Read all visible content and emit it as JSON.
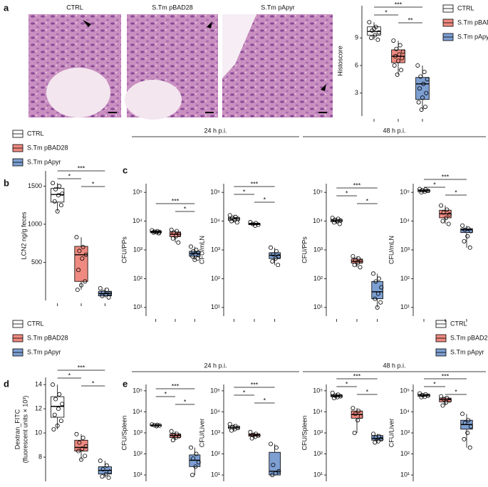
{
  "panels": [
    "a",
    "b",
    "c",
    "d",
    "e"
  ],
  "images": [
    "CTRL",
    "S.Tm pBAD28",
    "S.Tm pApyr"
  ],
  "groups": [
    {
      "name": "CTRL",
      "color": "#ffffff"
    },
    {
      "name": "S.Tm pBAD28",
      "color": "#ef8a80"
    },
    {
      "name": "S.Tm pApyr",
      "color": "#7d9fd2"
    }
  ],
  "timepoints": [
    "24 h p.i.",
    "48 h p.i."
  ],
  "chart_data": [
    {
      "type": "box",
      "ylabel": "Histoscore",
      "log": false,
      "ylim": [
        0.5,
        12.5
      ],
      "yticks": [
        3,
        6,
        9
      ],
      "boxes": [
        {
          "min": 8.8,
          "q1": 9.3,
          "median": 9.7,
          "q3": 10.2,
          "max": 10.7,
          "points": [
            10.7,
            10.2,
            9.8,
            9.6,
            9.3,
            9.0,
            8.8,
            10.0
          ]
        },
        {
          "min": 5.0,
          "q1": 6.3,
          "median": 7.0,
          "q3": 7.7,
          "max": 8.7,
          "points": [
            8.7,
            8.2,
            7.8,
            7.5,
            7.2,
            7.0,
            6.8,
            6.5,
            6.0,
            5.5,
            5.0
          ]
        },
        {
          "min": 1.2,
          "q1": 2.3,
          "median": 4.0,
          "q3": 4.7,
          "max": 6.0,
          "points": [
            6.0,
            5.3,
            4.8,
            4.5,
            4.0,
            3.5,
            3.0,
            2.5,
            2.0,
            1.5,
            1.2
          ]
        }
      ],
      "significance": [
        {
          "label": "***",
          "pair": [
            0,
            2
          ]
        },
        {
          "label": "*",
          "pair": [
            0,
            1
          ]
        },
        {
          "label": "**",
          "pair": [
            1,
            2
          ]
        }
      ]
    },
    {
      "type": "box",
      "ylabel": "LCN2 ng/g feces",
      "log": false,
      "ylim": [
        0,
        1700
      ],
      "yticks": [
        500,
        1000,
        1500
      ],
      "boxes": [
        {
          "min": 1170,
          "q1": 1290,
          "median": 1390,
          "q3": 1470,
          "max": 1540,
          "points": [
            1540,
            1500,
            1460,
            1400,
            1380,
            1300,
            1250,
            1170
          ]
        },
        {
          "min": 140,
          "q1": 250,
          "median": 600,
          "q3": 710,
          "max": 830,
          "points": [
            830,
            700,
            650,
            600,
            550,
            400,
            250,
            200,
            140
          ]
        },
        {
          "min": 40,
          "q1": 60,
          "median": 90,
          "q3": 120,
          "max": 160,
          "points": [
            160,
            140,
            110,
            90,
            80,
            60,
            40
          ]
        }
      ],
      "significance": [
        {
          "label": "***",
          "pair": [
            0,
            2
          ]
        },
        {
          "label": "*",
          "pair": [
            0,
            1
          ]
        },
        {
          "label": "*",
          "pair": [
            1,
            2
          ]
        }
      ]
    },
    {
      "type": "box",
      "ylabel": "CFU/PPs",
      "log": true,
      "ylim": [
        5,
        200000
      ],
      "yticks": [
        {
          "value": 10,
          "label": "10¹"
        },
        {
          "value": 100,
          "label": "10²"
        },
        {
          "value": 1000,
          "label": "10³"
        },
        {
          "value": 10000,
          "label": "10⁴"
        },
        {
          "value": 100000,
          "label": "10⁵"
        }
      ],
      "boxes": [
        {
          "min": 3800,
          "q1": 4000,
          "median": 4200,
          "q3": 4500,
          "max": 4800,
          "points": [
            4800,
            4500,
            4300,
            4200,
            4100,
            4000,
            3800
          ]
        },
        {
          "min": 1800,
          "q1": 2900,
          "median": 3500,
          "q3": 4200,
          "max": 5000,
          "points": [
            5000,
            4500,
            4000,
            3500,
            3000,
            2500,
            1800
          ]
        },
        {
          "min": 450,
          "q1": 600,
          "median": 750,
          "q3": 900,
          "max": 1300,
          "points": [
            1300,
            1000,
            900,
            800,
            700,
            600,
            500,
            450
          ]
        }
      ],
      "significance": [
        {
          "label": "***",
          "pair": [
            0,
            2
          ]
        },
        {
          "label": "*",
          "pair": [
            1,
            2
          ]
        }
      ]
    },
    {
      "type": "box",
      "ylabel": "CFU/mLN",
      "log": true,
      "ylim": [
        5,
        200000
      ],
      "yticks": [
        {
          "value": 10,
          "label": "10¹"
        },
        {
          "value": 100,
          "label": "10²"
        },
        {
          "value": 1000,
          "label": "10³"
        },
        {
          "value": 10000,
          "label": "10⁴"
        },
        {
          "value": 100000,
          "label": "10⁵"
        }
      ],
      "boxes": [
        {
          "min": 9000,
          "q1": 10500,
          "median": 12000,
          "q3": 13500,
          "max": 16000,
          "points": [
            16000,
            14000,
            13000,
            12000,
            11000,
            10000,
            9000
          ]
        },
        {
          "min": 7000,
          "q1": 7500,
          "median": 8000,
          "q3": 8500,
          "max": 9200,
          "points": [
            9200,
            8500,
            8000,
            7500,
            7000
          ]
        },
        {
          "min": 300,
          "q1": 500,
          "median": 650,
          "q3": 800,
          "max": 1200,
          "points": [
            1200,
            900,
            700,
            600,
            500,
            400,
            300
          ]
        }
      ],
      "significance": [
        {
          "label": "***",
          "pair": [
            0,
            2
          ]
        },
        {
          "label": "*",
          "pair": [
            0,
            1
          ]
        },
        {
          "label": "*",
          "pair": [
            1,
            2
          ]
        }
      ]
    },
    {
      "type": "box",
      "ylabel": "CFU/PPs",
      "log": true,
      "ylim": [
        5,
        200000
      ],
      "yticks": [
        {
          "value": 10,
          "label": "10¹"
        },
        {
          "value": 100,
          "label": "10²"
        },
        {
          "value": 1000,
          "label": "10³"
        },
        {
          "value": 10000,
          "label": "10⁴"
        },
        {
          "value": 100000,
          "label": "10⁵"
        }
      ],
      "boxes": [
        {
          "min": 8000,
          "q1": 9500,
          "median": 10500,
          "q3": 11500,
          "max": 13000,
          "points": [
            13000,
            12000,
            11000,
            10500,
            10000,
            9000,
            8000
          ]
        },
        {
          "min": 250,
          "q1": 350,
          "median": 400,
          "q3": 480,
          "max": 600,
          "points": [
            600,
            500,
            450,
            400,
            350,
            300,
            250
          ]
        },
        {
          "min": 10,
          "q1": 20,
          "median": 35,
          "q3": 80,
          "max": 150,
          "points": [
            150,
            100,
            80,
            50,
            30,
            20,
            15,
            10
          ]
        }
      ],
      "significance": [
        {
          "label": "***",
          "pair": [
            0,
            2
          ]
        },
        {
          "label": "*",
          "pair": [
            0,
            1
          ]
        },
        {
          "label": "*",
          "pair": [
            1,
            2
          ]
        }
      ]
    },
    {
      "type": "box",
      "ylabel": "CFU/mLN",
      "log": true,
      "ylim": [
        5,
        200000
      ],
      "yticks": [
        {
          "value": 10,
          "label": "10¹"
        },
        {
          "value": 100,
          "label": "10²"
        },
        {
          "value": 1000,
          "label": "10³"
        },
        {
          "value": 10000,
          "label": "10⁴"
        },
        {
          "value": 100000,
          "label": "10⁵"
        }
      ],
      "boxes": [
        {
          "min": 100000,
          "q1": 105000,
          "median": 115000,
          "q3": 125000,
          "max": 130000,
          "points": [
            130000,
            125000,
            118000,
            112000,
            105000,
            100000
          ]
        },
        {
          "min": 8000,
          "q1": 13000,
          "median": 18000,
          "q3": 24000,
          "max": 35000,
          "points": [
            35000,
            25000,
            20000,
            17000,
            13000,
            10000,
            8000
          ]
        },
        {
          "min": 1200,
          "q1": 4000,
          "median": 5000,
          "q3": 5500,
          "max": 7000,
          "points": [
            7000,
            5500,
            5000,
            4500,
            3000,
            2000,
            1200
          ]
        }
      ],
      "significance": [
        {
          "label": "***",
          "pair": [
            0,
            2
          ]
        },
        {
          "label": "*",
          "pair": [
            0,
            1
          ]
        },
        {
          "label": "*",
          "pair": [
            1,
            2
          ]
        }
      ]
    },
    {
      "type": "box",
      "ylabel": [
        "Dextran_FITC",
        "(fluorescent units × 10³)"
      ],
      "log": false,
      "ylim": [
        6,
        14.6
      ],
      "yticks": [
        8,
        10,
        12,
        14
      ],
      "boxes": [
        {
          "min": 10.3,
          "q1": 11.3,
          "median": 12.2,
          "q3": 13,
          "max": 14,
          "points": [
            14,
            13.2,
            12.8,
            12.4,
            12,
            11.5,
            11,
            10.6,
            10.3
          ]
        },
        {
          "min": 7.8,
          "q1": 8.5,
          "median": 8.8,
          "q3": 9.4,
          "max": 9.9,
          "points": [
            9.9,
            9.6,
            9.2,
            8.9,
            8.7,
            8.5,
            8.1,
            7.8
          ]
        },
        {
          "min": 6.3,
          "q1": 6.6,
          "median": 6.9,
          "q3": 7.2,
          "max": 7.7,
          "points": [
            7.7,
            7.3,
            7,
            6.8,
            6.6,
            6.4,
            6.3
          ]
        }
      ],
      "significance": [
        {
          "label": "***",
          "pair": [
            0,
            2
          ]
        },
        {
          "label": "*",
          "pair": [
            0,
            1
          ]
        },
        {
          "label": "*",
          "pair": [
            1,
            2
          ]
        }
      ]
    },
    {
      "type": "box",
      "ylabel": "CFU/Spleen",
      "log": true,
      "ylim": [
        5,
        200000
      ],
      "yticks": [
        {
          "value": 10,
          "label": "10¹"
        },
        {
          "value": 100,
          "label": "10²"
        },
        {
          "value": 1000,
          "label": "10³"
        },
        {
          "value": 10000,
          "label": "10⁴"
        },
        {
          "value": 100000,
          "label": "10⁵"
        }
      ],
      "boxes": [
        {
          "min": 2100,
          "q1": 2200,
          "median": 2300,
          "q3": 2400,
          "max": 2500,
          "points": [
            2500,
            2400,
            2300,
            2250,
            2100
          ]
        },
        {
          "min": 450,
          "q1": 600,
          "median": 750,
          "q3": 900,
          "max": 1200,
          "points": [
            1200,
            900,
            800,
            700,
            600,
            450
          ]
        },
        {
          "min": 10,
          "q1": 25,
          "median": 50,
          "q3": 90,
          "max": 200,
          "points": [
            200,
            100,
            60,
            40,
            25,
            10
          ]
        }
      ],
      "significance": [
        {
          "label": "***",
          "pair": [
            0,
            2
          ]
        },
        {
          "label": "*",
          "pair": [
            0,
            1
          ]
        },
        {
          "label": "*",
          "pair": [
            1,
            2
          ]
        }
      ]
    },
    {
      "type": "box",
      "ylabel": "CFU/Liver",
      "log": true,
      "ylim": [
        5,
        200000
      ],
      "yticks": [
        {
          "value": 10,
          "label": "10¹"
        },
        {
          "value": 100,
          "label": "10²"
        },
        {
          "value": 1000,
          "label": "10³"
        },
        {
          "value": 10000,
          "label": "10⁴"
        },
        {
          "value": 100000,
          "label": "10⁵"
        }
      ],
      "boxes": [
        {
          "min": 1300,
          "q1": 1600,
          "median": 1800,
          "q3": 2100,
          "max": 2600,
          "points": [
            2600,
            2100,
            1900,
            1700,
            1500,
            1300
          ]
        },
        {
          "min": 550,
          "q1": 700,
          "median": 800,
          "q3": 900,
          "max": 1100,
          "points": [
            1100,
            900,
            800,
            750,
            650,
            550
          ]
        },
        {
          "min": 10,
          "q1": 10,
          "median": 15,
          "q3": 120,
          "max": 300,
          "points": [
            300,
            200,
            30,
            15,
            12,
            10
          ]
        }
      ],
      "significance": [
        {
          "label": "***",
          "pair": [
            0,
            2
          ]
        },
        {
          "label": "*",
          "pair": [
            0,
            1
          ]
        },
        {
          "label": "*",
          "pair": [
            1,
            2
          ]
        }
      ]
    },
    {
      "type": "box",
      "ylabel": "CFU/Spleen",
      "log": true,
      "ylim": [
        5,
        200000
      ],
      "yticks": [
        {
          "value": 10,
          "label": "10¹"
        },
        {
          "value": 100,
          "label": "10²"
        },
        {
          "value": 1000,
          "label": "10³"
        },
        {
          "value": 10000,
          "label": "10⁴"
        },
        {
          "value": 100000,
          "label": "10⁵"
        }
      ],
      "boxes": [
        {
          "min": 45000,
          "q1": 52000,
          "median": 58000,
          "q3": 65000,
          "max": 80000,
          "points": [
            80000,
            65000,
            60000,
            55000,
            50000,
            45000
          ]
        },
        {
          "min": 1000,
          "q1": 5000,
          "median": 7500,
          "q3": 11000,
          "max": 15000,
          "points": [
            15000,
            11000,
            8000,
            6000,
            4000,
            1000
          ]
        },
        {
          "min": 350,
          "q1": 450,
          "median": 550,
          "q3": 750,
          "max": 900,
          "points": [
            900,
            700,
            600,
            500,
            400,
            350
          ]
        }
      ],
      "significance": [
        {
          "label": "***",
          "pair": [
            0,
            2
          ]
        },
        {
          "label": "*",
          "pair": [
            0,
            1
          ]
        },
        {
          "label": "*",
          "pair": [
            1,
            2
          ]
        }
      ]
    },
    {
      "type": "box",
      "ylabel": "CFU/Liver",
      "log": true,
      "ylim": [
        5,
        200000
      ],
      "yticks": [
        {
          "value": 10,
          "label": "10¹"
        },
        {
          "value": 100,
          "label": "10²"
        },
        {
          "value": 1000,
          "label": "10³"
        },
        {
          "value": 10000,
          "label": "10⁴"
        },
        {
          "value": 100000,
          "label": "10⁵"
        }
      ],
      "boxes": [
        {
          "min": 50000,
          "q1": 55000,
          "median": 62000,
          "q3": 68000,
          "max": 75000,
          "points": [
            75000,
            68000,
            63000,
            58000,
            52000,
            50000
          ]
        },
        {
          "min": 20000,
          "q1": 30000,
          "median": 38000,
          "q3": 45000,
          "max": 55000,
          "points": [
            55000,
            45000,
            40000,
            35000,
            28000,
            20000
          ]
        },
        {
          "min": 200,
          "q1": 1500,
          "median": 2500,
          "q3": 4000,
          "max": 8000,
          "points": [
            8000,
            4000,
            3000,
            2000,
            1000,
            500,
            200
          ]
        }
      ],
      "significance": [
        {
          "label": "***",
          "pair": [
            0,
            2
          ]
        },
        {
          "label": "*",
          "pair": [
            0,
            1
          ]
        },
        {
          "label": "*",
          "pair": [
            1,
            2
          ]
        }
      ]
    }
  ]
}
